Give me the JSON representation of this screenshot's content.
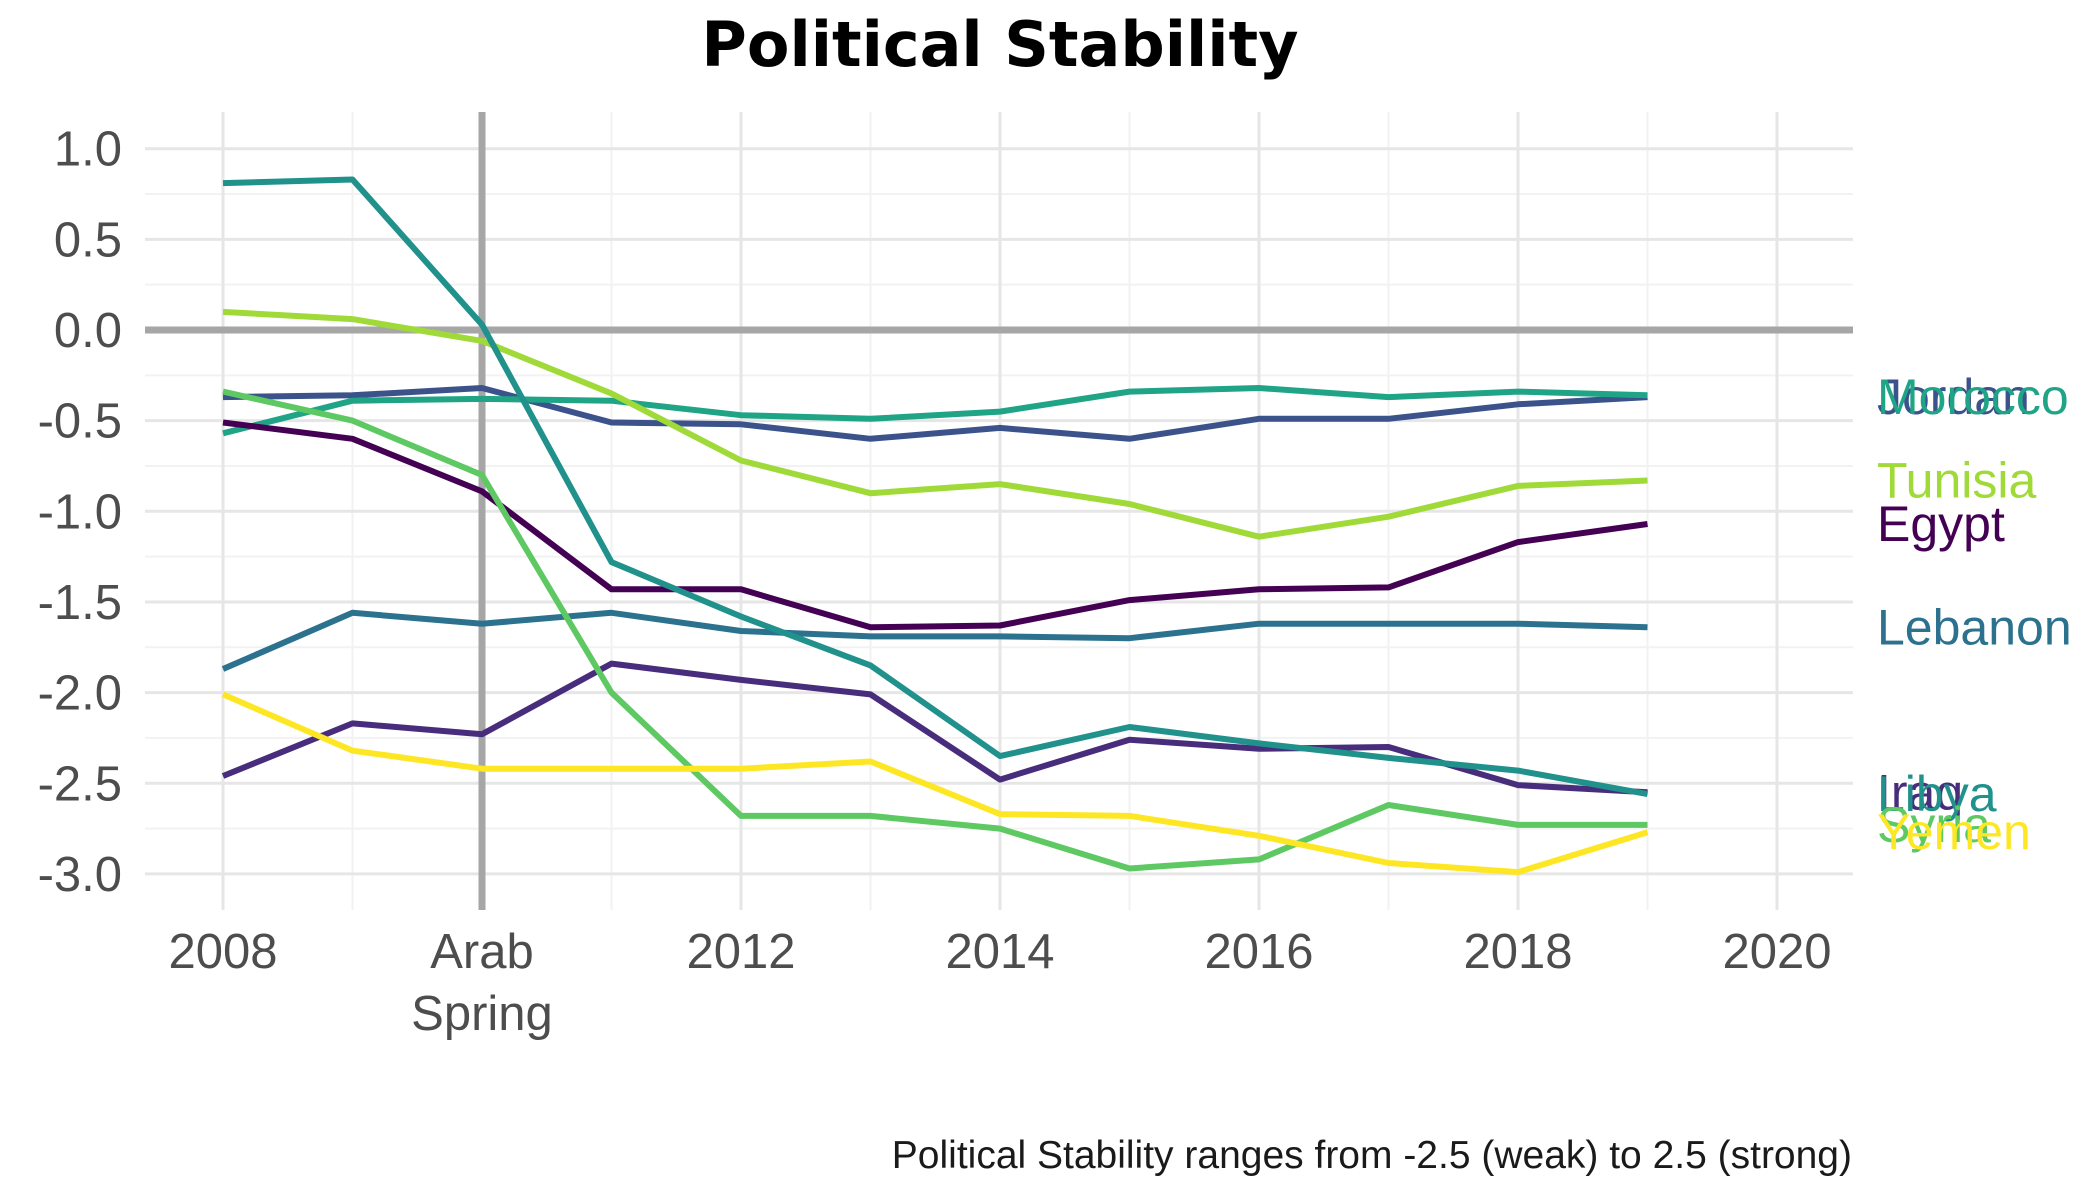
{
  "chart_data": {
    "type": "line",
    "title": "Political Stability",
    "caption": "Political Stability ranges from -2.5 (weak) to 2.5 (strong)",
    "xlabel": "",
    "ylabel": "",
    "xlim": [
      2007.8,
      2020.6
    ],
    "ylim": [
      -3.2,
      1.2
    ],
    "grid": true,
    "x_ticks": [
      {
        "value": 2008,
        "label": "2008"
      },
      {
        "value": 2010,
        "label": "Arab",
        "label2": "Spring"
      },
      {
        "value": 2012,
        "label": "2012"
      },
      {
        "value": 2014,
        "label": "2014"
      },
      {
        "value": 2016,
        "label": "2016"
      },
      {
        "value": 2018,
        "label": "2018"
      },
      {
        "value": 2020,
        "label": "2020"
      }
    ],
    "y_ticks": [
      {
        "value": 1.0,
        "label": "1.0"
      },
      {
        "value": 0.5,
        "label": "0.5"
      },
      {
        "value": 0.0,
        "label": "0.0"
      },
      {
        "value": -0.5,
        "label": "-0.5"
      },
      {
        "value": -1.0,
        "label": "-1.0"
      },
      {
        "value": -1.5,
        "label": "-1.5"
      },
      {
        "value": -2.0,
        "label": "-2.0"
      },
      {
        "value": -2.5,
        "label": "-2.5"
      },
      {
        "value": -3.0,
        "label": "-3.0"
      }
    ],
    "reference_lines": {
      "vertical_x": 2010,
      "horizontal_y": 0.0,
      "color": "#a6a6a6"
    },
    "x": [
      2008,
      2009,
      2010,
      2011,
      2012,
      2013,
      2014,
      2015,
      2016,
      2017,
      2018,
      2019
    ],
    "series": [
      {
        "name": "Jordan",
        "color": "#3b528b",
        "label_y": -0.37,
        "values": [
          -0.37,
          -0.36,
          -0.32,
          -0.51,
          -0.52,
          -0.6,
          -0.54,
          -0.6,
          -0.49,
          -0.49,
          -0.41,
          -0.37
        ]
      },
      {
        "name": "Morocco",
        "color": "#20a486",
        "label_y": -0.37,
        "values": [
          -0.57,
          -0.39,
          -0.38,
          -0.39,
          -0.47,
          -0.49,
          -0.45,
          -0.34,
          -0.32,
          -0.37,
          -0.34,
          -0.36
        ]
      },
      {
        "name": "Tunisia",
        "color": "#a0da39",
        "label_y": -0.83,
        "values": [
          0.1,
          0.06,
          -0.06,
          -0.35,
          -0.72,
          -0.9,
          -0.85,
          -0.96,
          -1.14,
          -1.03,
          -0.86,
          -0.83
        ]
      },
      {
        "name": "Egypt",
        "color": "#440154",
        "label_y": -1.07,
        "values": [
          -0.51,
          -0.6,
          -0.89,
          -1.43,
          -1.43,
          -1.64,
          -1.63,
          -1.49,
          -1.43,
          -1.42,
          -1.17,
          -1.07
        ]
      },
      {
        "name": "Lebanon",
        "color": "#2c728e",
        "label_y": -1.64,
        "values": [
          -1.87,
          -1.56,
          -1.62,
          -1.56,
          -1.66,
          -1.69,
          -1.69,
          -1.7,
          -1.62,
          -1.62,
          -1.62,
          -1.64
        ]
      },
      {
        "name": "Iraq",
        "color": "#472d7b",
        "label_y": -2.55,
        "values": [
          -2.46,
          -2.17,
          -2.23,
          -1.84,
          -1.93,
          -2.01,
          -2.48,
          -2.26,
          -2.31,
          -2.3,
          -2.51,
          -2.55
        ]
      },
      {
        "name": "Libya",
        "color": "#21918c",
        "label_y": -2.56,
        "values": [
          0.81,
          0.83,
          0.03,
          -1.28,
          -1.58,
          -1.85,
          -2.35,
          -2.19,
          -2.28,
          -2.36,
          -2.43,
          -2.56
        ]
      },
      {
        "name": "Syria",
        "color": "#5ec962",
        "label_y": -2.73,
        "values": [
          -0.34,
          -0.5,
          -0.8,
          -2.0,
          -2.68,
          -2.68,
          -2.75,
          -2.97,
          -2.92,
          -2.62,
          -2.73,
          -2.73
        ]
      },
      {
        "name": "Yemen",
        "color": "#fde725",
        "label_y": -2.77,
        "values": [
          -2.01,
          -2.32,
          -2.42,
          -2.42,
          -2.42,
          -2.38,
          -2.67,
          -2.68,
          -2.79,
          -2.94,
          -2.99,
          -2.77
        ]
      }
    ]
  }
}
